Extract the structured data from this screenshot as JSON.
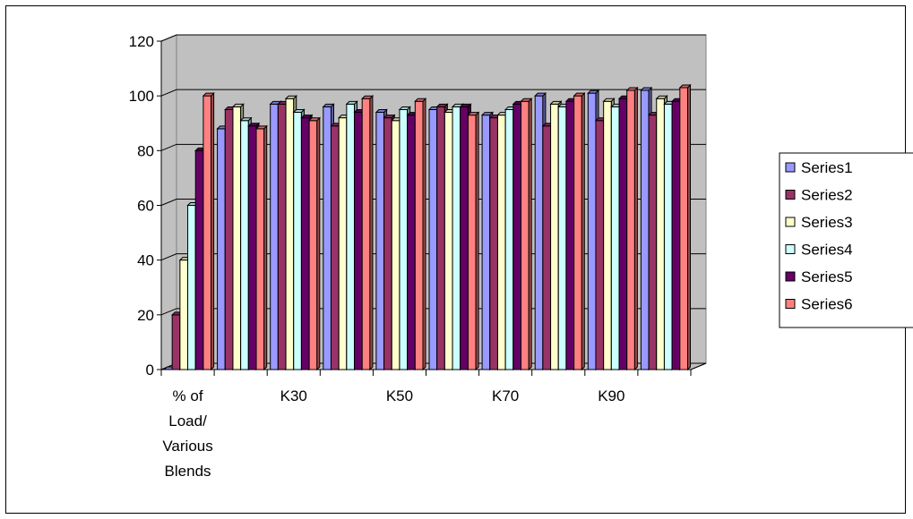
{
  "chart_data": {
    "type": "bar",
    "style": "3d-clustered-column",
    "categories": [
      "% of Load/ Various Blends",
      "",
      "K30",
      "",
      "K50",
      "",
      "K70",
      "",
      "K90",
      ""
    ],
    "category_label_lines": [
      [
        "% of",
        "Load/",
        "Various",
        "Blends"
      ],
      [],
      [
        "K30"
      ],
      [],
      [
        "K50"
      ],
      [],
      [
        "K70"
      ],
      [],
      [
        "K90"
      ],
      []
    ],
    "ylim": [
      0,
      120
    ],
    "yticks": [
      "0",
      "20",
      "40",
      "60",
      "80",
      "100",
      "120"
    ],
    "legend_position": "right",
    "grid": true,
    "colors": {
      "wall": "#c0c0c0",
      "floor": "#c0c0c0"
    },
    "series": [
      {
        "name": "Series1",
        "color": "#9999ff",
        "values": [
          0,
          88,
          97,
          96,
          94,
          95,
          93,
          100,
          101,
          102
        ]
      },
      {
        "name": "Series2",
        "color": "#993366",
        "values": [
          20,
          95,
          97,
          89,
          92,
          96,
          92,
          89,
          91,
          93
        ]
      },
      {
        "name": "Series3",
        "color": "#ffffcc",
        "values": [
          40,
          96,
          99,
          92,
          91,
          94,
          93,
          97,
          98,
          99
        ]
      },
      {
        "name": "Series4",
        "color": "#ccffff",
        "values": [
          60,
          91,
          94,
          97,
          95,
          96,
          95,
          96,
          96,
          97
        ]
      },
      {
        "name": "Series5",
        "color": "#660066",
        "values": [
          80,
          89,
          92,
          94,
          93,
          96,
          97,
          98,
          99,
          98
        ]
      },
      {
        "name": "Series6",
        "color": "#ff8080",
        "values": [
          100,
          88,
          91,
          99,
          98,
          93,
          98,
          100,
          102,
          103
        ]
      }
    ]
  }
}
